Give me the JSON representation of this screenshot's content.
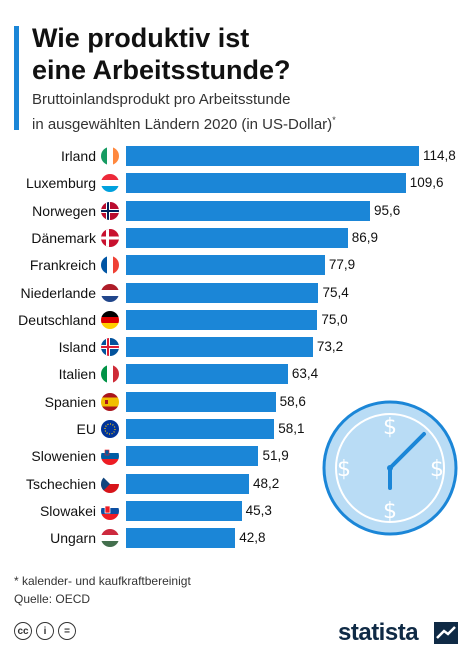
{
  "title_line1": "Wie produktiv ist",
  "title_line2": "eine Arbeitsstunde?",
  "subtitle_line1": "Bruttoinlandsprodukt pro Arbeitsstunde",
  "subtitle_line2": "in ausgewählten Ländern 2020 (in US-Dollar)",
  "subtitle_mark": "*",
  "footnote": "* kalender- und kaufkraftbereinigt",
  "source": "Quelle: OECD",
  "brand": "statista",
  "colors": {
    "bar": "#1b86d7",
    "accent": "#1b86d7"
  },
  "chart_data": {
    "type": "bar",
    "orientation": "horizontal",
    "categories": [
      "Irland",
      "Luxemburg",
      "Norwegen",
      "Dänemark",
      "Frankreich",
      "Niederlande",
      "Deutschland",
      "Island",
      "Italien",
      "Spanien",
      "EU",
      "Slowenien",
      "Tschechien",
      "Slowakei",
      "Ungarn"
    ],
    "values": [
      114.8,
      109.6,
      95.6,
      86.9,
      77.9,
      75.4,
      75.0,
      73.2,
      63.4,
      58.6,
      58.1,
      51.9,
      48.2,
      45.3,
      42.8
    ],
    "value_labels": [
      "114,8",
      "109,6",
      "95,6",
      "86,9",
      "77,9",
      "75,4",
      "75,0",
      "73,2",
      "63,4",
      "58,6",
      "58,1",
      "51,9",
      "48,2",
      "45,3",
      "42,8"
    ],
    "flag_icons": [
      "flag-ireland-icon",
      "flag-luxembourg-icon",
      "flag-norway-icon",
      "flag-denmark-icon",
      "flag-france-icon",
      "flag-netherlands-icon",
      "flag-germany-icon",
      "flag-iceland-icon",
      "flag-italy-icon",
      "flag-spain-icon",
      "flag-eu-icon",
      "flag-slovenia-icon",
      "flag-czechia-icon",
      "flag-slovakia-icon",
      "flag-hungary-icon"
    ],
    "xlim": [
      0,
      114.8
    ],
    "grid": false,
    "axes_visible": false,
    "decoration": "clock-dollar-icon"
  }
}
